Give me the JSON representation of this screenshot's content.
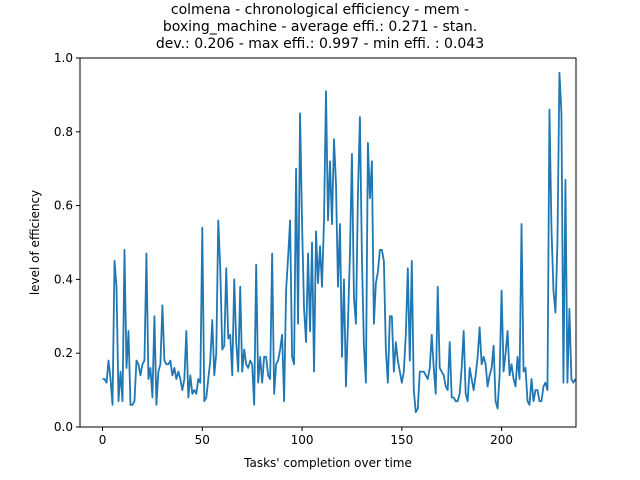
{
  "chart_data": {
    "type": "line",
    "title_lines": [
      "colmena - chronological efficiency - mem -",
      "boxing_machine - average effi.: 0.271 - stan.",
      "dev.: 0.206 - max effi.: 0.997 - min effi. : 0.043"
    ],
    "xlabel": "Tasks' completion over time",
    "ylabel": "level of efficiency",
    "xlim": [
      -11.3,
      237.3
    ],
    "ylim": [
      0.0,
      1.0
    ],
    "xticks": [
      0,
      50,
      100,
      150,
      200
    ],
    "yticks": [
      0.0,
      0.2,
      0.4,
      0.6,
      0.8,
      1.0
    ],
    "grid": false,
    "line_color": "#1f77b4",
    "series": [
      {
        "values": [
          0.13,
          0.13,
          0.12,
          0.18,
          0.13,
          0.06,
          0.45,
          0.38,
          0.07,
          0.15,
          0.07,
          0.48,
          0.16,
          0.26,
          0.06,
          0.06,
          0.07,
          0.18,
          0.17,
          0.14,
          0.17,
          0.18,
          0.47,
          0.13,
          0.16,
          0.08,
          0.3,
          0.06,
          0.15,
          0.17,
          0.33,
          0.18,
          0.17,
          0.17,
          0.18,
          0.14,
          0.16,
          0.13,
          0.15,
          0.13,
          0.1,
          0.13,
          0.26,
          0.08,
          0.14,
          0.09,
          0.1,
          0.09,
          0.13,
          0.12,
          0.54,
          0.07,
          0.08,
          0.13,
          0.18,
          0.29,
          0.14,
          0.2,
          0.56,
          0.43,
          0.21,
          0.22,
          0.43,
          0.24,
          0.25,
          0.14,
          0.4,
          0.23,
          0.15,
          0.38,
          0.15,
          0.21,
          0.17,
          0.16,
          0.18,
          0.17,
          0.06,
          0.44,
          0.12,
          0.19,
          0.12,
          0.19,
          0.19,
          0.14,
          0.13,
          0.47,
          0.09,
          0.17,
          0.18,
          0.21,
          0.25,
          0.07,
          0.37,
          0.46,
          0.56,
          0.19,
          0.17,
          0.7,
          0.28,
          0.85,
          0.55,
          0.32,
          0.23,
          0.47,
          0.26,
          0.5,
          0.15,
          0.53,
          0.39,
          0.49,
          0.38,
          0.56,
          0.91,
          0.56,
          0.72,
          0.55,
          0.78,
          0.66,
          0.38,
          0.55,
          0.19,
          0.4,
          0.11,
          0.28,
          0.47,
          0.74,
          0.35,
          0.28,
          0.63,
          0.84,
          0.46,
          0.22,
          0.12,
          0.77,
          0.62,
          0.72,
          0.28,
          0.39,
          0.42,
          0.48,
          0.48,
          0.45,
          0.21,
          0.12,
          0.3,
          0.3,
          0.15,
          0.23,
          0.18,
          0.15,
          0.12,
          0.15,
          0.25,
          0.43,
          0.18,
          0.45,
          0.1,
          0.04,
          0.05,
          0.15,
          0.15,
          0.15,
          0.14,
          0.13,
          0.16,
          0.25,
          0.16,
          0.09,
          0.38,
          0.16,
          0.15,
          0.14,
          0.11,
          0.1,
          0.23,
          0.08,
          0.08,
          0.07,
          0.07,
          0.09,
          0.16,
          0.26,
          0.09,
          0.07,
          0.16,
          0.13,
          0.1,
          0.14,
          0.19,
          0.27,
          0.17,
          0.19,
          0.17,
          0.11,
          0.14,
          0.16,
          0.22,
          0.07,
          0.05,
          0.14,
          0.37,
          0.15,
          0.2,
          0.26,
          0.14,
          0.17,
          0.13,
          0.11,
          0.19,
          0.13,
          0.55,
          0.15,
          0.16,
          0.07,
          0.06,
          0.13,
          0.07,
          0.1,
          0.1,
          0.07,
          0.07,
          0.11,
          0.12,
          0.1,
          0.86,
          0.54,
          0.37,
          0.31,
          0.5,
          0.96,
          0.85,
          0.12,
          0.67,
          0.12,
          0.32,
          0.13,
          0.12,
          0.13
        ]
      }
    ]
  }
}
